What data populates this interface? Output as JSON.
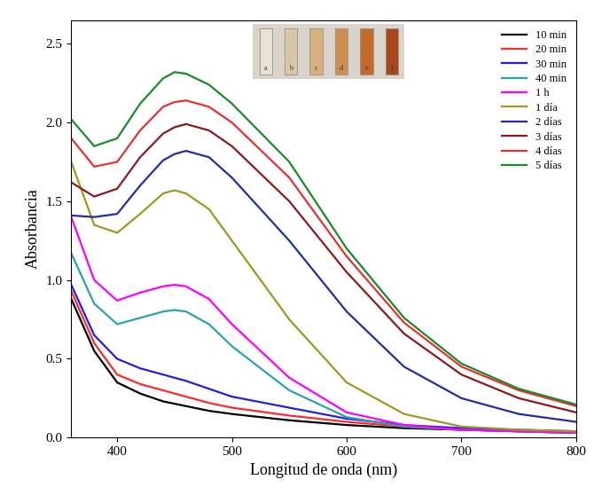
{
  "chart_data": {
    "type": "line",
    "x_label": "Longitud de onda (nm)",
    "y_label": "Absorbancia",
    "x": [
      360,
      380,
      400,
      420,
      440,
      450,
      460,
      480,
      500,
      550,
      600,
      650,
      700,
      750,
      800
    ],
    "series": [
      {
        "name": "10 min",
        "color": "#000000",
        "values": [
          0.88,
          0.55,
          0.35,
          0.28,
          0.23,
          0.215,
          0.2,
          0.17,
          0.15,
          0.11,
          0.08,
          0.06,
          0.05,
          0.04,
          0.03
        ]
      },
      {
        "name": "20 min",
        "color": "#ff2a2a",
        "values": [
          0.93,
          0.6,
          0.4,
          0.34,
          0.3,
          0.28,
          0.26,
          0.22,
          0.19,
          0.14,
          0.1,
          0.07,
          0.05,
          0.04,
          0.03
        ]
      },
      {
        "name": "30 min",
        "color": "#2020e0",
        "values": [
          0.97,
          0.65,
          0.5,
          0.44,
          0.4,
          0.38,
          0.36,
          0.31,
          0.26,
          0.19,
          0.12,
          0.08,
          0.06,
          0.05,
          0.04
        ]
      },
      {
        "name": "40 min",
        "color": "#2aa5a5",
        "values": [
          1.17,
          0.85,
          0.72,
          0.76,
          0.8,
          0.81,
          0.8,
          0.72,
          0.58,
          0.3,
          0.13,
          0.07,
          0.05,
          0.04,
          0.03
        ]
      },
      {
        "name": "1 h",
        "color": "#ff00ff",
        "values": [
          1.4,
          1.0,
          0.87,
          0.92,
          0.96,
          0.97,
          0.96,
          0.88,
          0.72,
          0.38,
          0.16,
          0.08,
          0.05,
          0.04,
          0.03
        ]
      },
      {
        "name": "1 día",
        "color": "#9a9a20",
        "values": [
          1.75,
          1.35,
          1.3,
          1.42,
          1.55,
          1.57,
          1.55,
          1.45,
          1.25,
          0.75,
          0.35,
          0.15,
          0.07,
          0.05,
          0.04
        ]
      },
      {
        "name": "2 días",
        "color": "#1f2fa0",
        "values": [
          1.41,
          1.4,
          1.42,
          1.6,
          1.76,
          1.8,
          1.82,
          1.78,
          1.65,
          1.25,
          0.8,
          0.45,
          0.25,
          0.15,
          0.1
        ]
      },
      {
        "name": "3 días",
        "color": "#8b1a1a",
        "values": [
          1.62,
          1.53,
          1.58,
          1.78,
          1.93,
          1.97,
          1.99,
          1.95,
          1.85,
          1.5,
          1.05,
          0.66,
          0.4,
          0.25,
          0.16
        ]
      },
      {
        "name": "4 días",
        "color": "#e83030",
        "values": [
          1.9,
          1.72,
          1.75,
          1.95,
          2.1,
          2.13,
          2.14,
          2.1,
          2.0,
          1.65,
          1.15,
          0.73,
          0.45,
          0.3,
          0.2
        ]
      },
      {
        "name": "5 días",
        "color": "#1a8a2a",
        "values": [
          2.02,
          1.85,
          1.9,
          2.12,
          2.28,
          2.32,
          2.31,
          2.24,
          2.12,
          1.75,
          1.2,
          0.76,
          0.47,
          0.31,
          0.21
        ]
      }
    ],
    "xlim": [
      360,
      800
    ],
    "xticks": [
      400,
      500,
      600,
      700,
      800
    ],
    "ylim": [
      0,
      2.65
    ],
    "yticks": [
      {
        "value": 0,
        "label": "0.0"
      },
      0.5,
      {
        "value": 1,
        "label": "1.0"
      },
      1.5,
      {
        "value": 2,
        "label": "2.0"
      },
      2.5
    ],
    "legend": "upper right",
    "inset_labels": [
      "a",
      "b",
      "c",
      "d",
      "e",
      "f"
    ]
  }
}
